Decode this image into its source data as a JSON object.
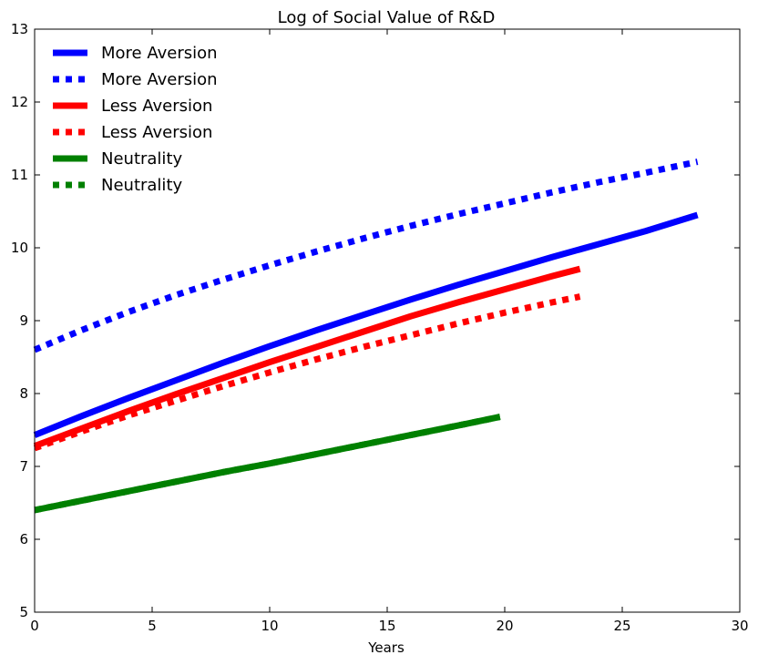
{
  "chart_data": {
    "type": "line",
    "title": "Log of Social Value of R&D",
    "xlabel": "Years",
    "ylabel": "",
    "xlim": [
      0,
      30
    ],
    "ylim": [
      5,
      13
    ],
    "xticks": [
      0,
      5,
      10,
      15,
      20,
      25,
      30
    ],
    "yticks": [
      5,
      6,
      7,
      8,
      9,
      10,
      11,
      12,
      13
    ],
    "grid": false,
    "legend": "top-left",
    "series": [
      {
        "name": "More Aversion",
        "color": "#0000ff",
        "style": "solid",
        "x": [
          0,
          2,
          4,
          6,
          8,
          10,
          12,
          14,
          16,
          18,
          20,
          22,
          24,
          26,
          28.2
        ],
        "y": [
          7.43,
          7.69,
          7.94,
          8.18,
          8.42,
          8.65,
          8.87,
          9.08,
          9.29,
          9.49,
          9.68,
          9.87,
          10.05,
          10.23,
          10.45
        ]
      },
      {
        "name": "More Aversion",
        "color": "#0000ff",
        "style": "dotted",
        "x": [
          0,
          2,
          4,
          6,
          8,
          10,
          12,
          14,
          16,
          18,
          20,
          22,
          24,
          26,
          28.2
        ],
        "y": [
          8.6,
          8.87,
          9.12,
          9.35,
          9.56,
          9.76,
          9.95,
          10.13,
          10.3,
          10.46,
          10.61,
          10.76,
          10.9,
          11.03,
          11.18
        ]
      },
      {
        "name": "Less Aversion",
        "color": "#ff0000",
        "style": "solid",
        "x": [
          0,
          2,
          4,
          6,
          8,
          10,
          12,
          14,
          16,
          18,
          20,
          22,
          23.2
        ],
        "y": [
          7.28,
          7.52,
          7.76,
          7.99,
          8.21,
          8.43,
          8.64,
          8.85,
          9.06,
          9.25,
          9.43,
          9.61,
          9.71
        ]
      },
      {
        "name": "Less Aversion",
        "color": "#ff0000",
        "style": "dotted",
        "x": [
          0,
          2,
          4,
          6,
          8,
          10,
          12,
          14,
          16,
          18,
          20,
          22,
          23.2
        ],
        "y": [
          7.25,
          7.48,
          7.7,
          7.9,
          8.1,
          8.29,
          8.47,
          8.64,
          8.8,
          8.96,
          9.11,
          9.25,
          9.33
        ]
      },
      {
        "name": "Neutrality",
        "color": "#008000",
        "style": "solid",
        "x": [
          0,
          2,
          4,
          6,
          8,
          10,
          12,
          14,
          16,
          18,
          19.8
        ],
        "y": [
          6.4,
          6.53,
          6.66,
          6.79,
          6.92,
          7.04,
          7.17,
          7.3,
          7.43,
          7.56,
          7.68
        ]
      },
      {
        "name": "Neutrality",
        "color": "#008000",
        "style": "dotted",
        "x": [
          0,
          2,
          4,
          6,
          8,
          10,
          12,
          14,
          16,
          18,
          19.8
        ],
        "y": [
          6.4,
          6.53,
          6.66,
          6.79,
          6.92,
          7.04,
          7.17,
          7.3,
          7.43,
          7.56,
          7.68
        ]
      }
    ]
  }
}
